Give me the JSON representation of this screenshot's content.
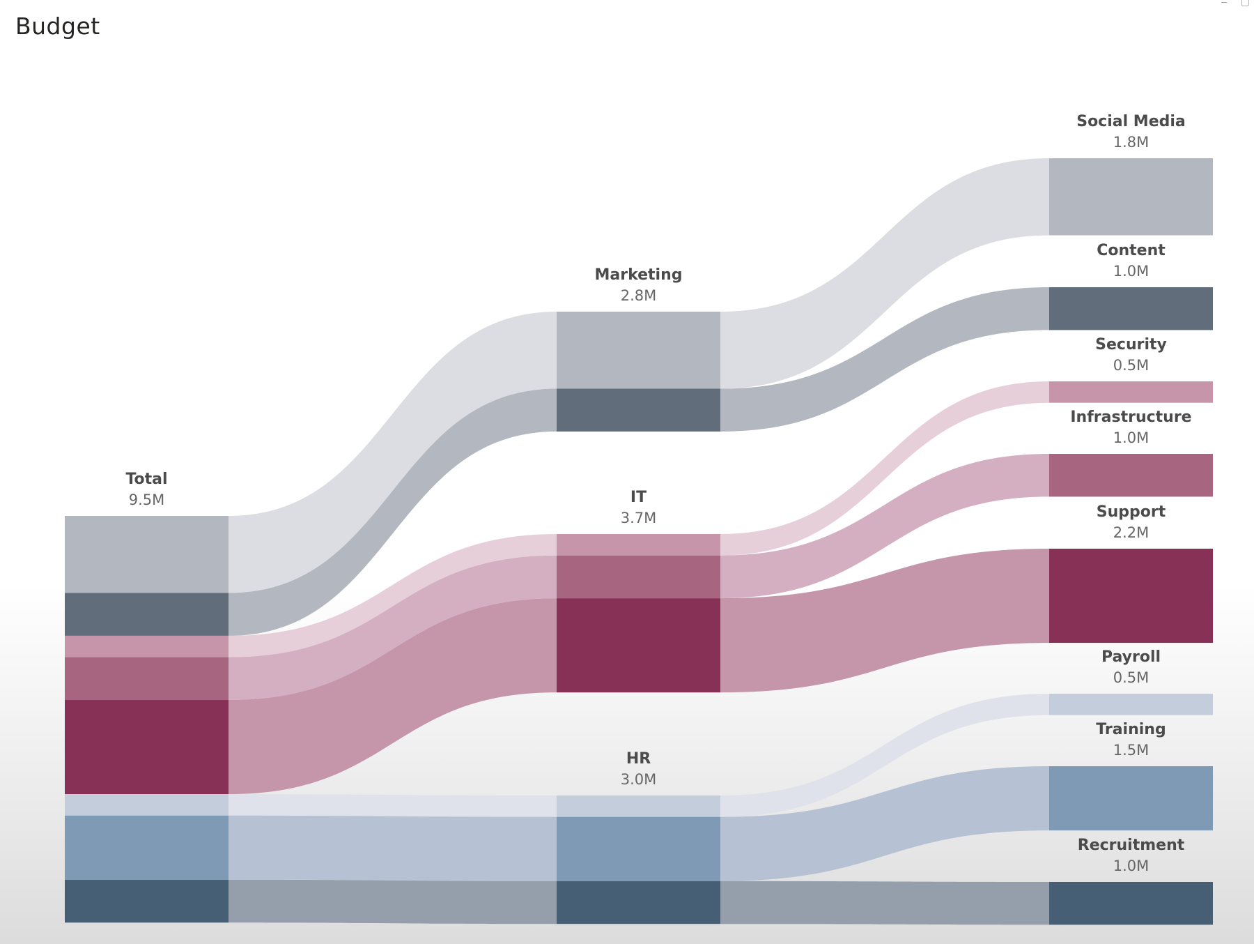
{
  "page": {
    "title": "Budget"
  },
  "chart_data": {
    "type": "sankey",
    "title": "Budget",
    "value_suffix": "M",
    "nodes": [
      {
        "id": "total",
        "name": "Total",
        "value_label": "9.5M",
        "column": 0,
        "color": "#b3b7c0"
      },
      {
        "id": "marketing",
        "name": "Marketing",
        "value_label": "2.8M",
        "column": 1,
        "color": "#b3b7c0"
      },
      {
        "id": "it",
        "name": "IT",
        "value_label": "3.7M",
        "column": 1,
        "color": "#c795aa"
      },
      {
        "id": "hr",
        "name": "HR",
        "value_label": "3.0M",
        "column": 1,
        "color": "#aebdd0"
      },
      {
        "id": "social_media",
        "name": "Social Media",
        "value_label": "1.8M",
        "column": 2,
        "color": "#b3b7c0"
      },
      {
        "id": "content",
        "name": "Content",
        "value_label": "1.0M",
        "column": 2,
        "color": "#616d7a"
      },
      {
        "id": "security",
        "name": "Security",
        "value_label": "0.5M",
        "column": 2,
        "color": "#c795aa"
      },
      {
        "id": "infrastructure",
        "name": "Infrastructure",
        "value_label": "1.0M",
        "column": 2,
        "color": "#a7657f"
      },
      {
        "id": "support",
        "name": "Support",
        "value_label": "2.2M",
        "column": 2,
        "color": "#883156"
      },
      {
        "id": "payroll",
        "name": "Payroll",
        "value_label": "0.5M",
        "column": 2,
        "color": "#c3cddc"
      },
      {
        "id": "training",
        "name": "Training",
        "value_label": "1.5M",
        "column": 2,
        "color": "#7e9ab4"
      },
      {
        "id": "recruitment",
        "name": "Recruitment",
        "value_label": "1.0M",
        "column": 2,
        "color": "#475f74"
      }
    ],
    "links": [
      {
        "source": "total",
        "target": "marketing",
        "leaf": "social_media",
        "value": 1.8,
        "seg_color": "#b3b7c0",
        "band_color": "#dcdde2"
      },
      {
        "source": "total",
        "target": "marketing",
        "leaf": "content",
        "value": 1.0,
        "seg_color": "#616d7a",
        "band_color": "#b3b7c0"
      },
      {
        "source": "total",
        "target": "it",
        "leaf": "security",
        "value": 0.5,
        "seg_color": "#c795aa",
        "band_color": "#e7cfda"
      },
      {
        "source": "total",
        "target": "it",
        "leaf": "infrastructure",
        "value": 1.0,
        "seg_color": "#a7657f",
        "band_color": "#d4afc2"
      },
      {
        "source": "total",
        "target": "it",
        "leaf": "support",
        "value": 2.2,
        "seg_color": "#883156",
        "band_color": "#c596aa"
      },
      {
        "source": "total",
        "target": "hr",
        "leaf": "payroll",
        "value": 0.5,
        "seg_color": "#c3cddc",
        "band_color": "#dfe2ea"
      },
      {
        "source": "total",
        "target": "hr",
        "leaf": "training",
        "value": 1.5,
        "seg_color": "#7e9ab4",
        "band_color": "#b6c2d4"
      },
      {
        "source": "total",
        "target": "hr",
        "leaf": "recruitment",
        "value": 1.0,
        "seg_color": "#475f74",
        "band_color": "#959fab"
      }
    ]
  }
}
